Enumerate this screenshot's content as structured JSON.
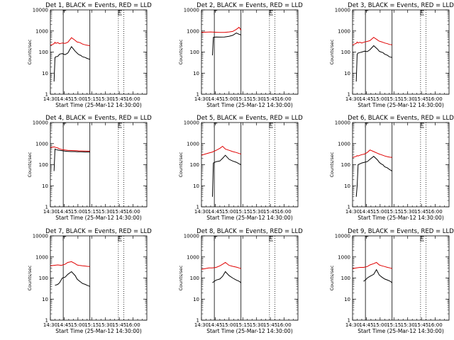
{
  "chart_data": [
    {
      "type": "line",
      "title": "Det 1, BLACK = Events, RED = LLD",
      "xlabel": "Start Time (25-Mar-12 14:30:00)",
      "ylabel": "Counts/sec",
      "ylog": true,
      "ylim": [
        1,
        10000
      ],
      "xlim": [
        "14:30",
        "16:15"
      ],
      "x_ticks": [
        "14:30",
        "14:45",
        "15:00",
        "15:15",
        "15:30",
        "15:45",
        "16:00"
      ],
      "y_ticks": [
        "1",
        "10",
        "100",
        "1000",
        "10000"
      ],
      "solid_markers": [
        "14:44",
        "15:13"
      ],
      "dotted_markers": [
        "15:44",
        "15:50"
      ],
      "series": [
        {
          "name": "Events",
          "color": "#000000",
          "x_minutes": [
            4,
            5,
            6,
            8,
            10,
            13,
            16,
            19,
            23,
            27,
            29,
            31,
            33,
            35,
            38,
            40,
            43
          ],
          "values": [
            4,
            55,
            60,
            62,
            80,
            85,
            75,
            90,
            180,
            110,
            90,
            75,
            70,
            60,
            55,
            50,
            45
          ]
        },
        {
          "name": "LLD",
          "color": "#e00000",
          "x_minutes": [
            0,
            4,
            5,
            6,
            8,
            10,
            13,
            16,
            19,
            23,
            27,
            29,
            31,
            33,
            35,
            38,
            40,
            43
          ],
          "values": [
            210,
            250,
            290,
            260,
            280,
            250,
            270,
            260,
            290,
            480,
            360,
            300,
            290,
            270,
            240,
            220,
            210,
            200
          ]
        }
      ]
    },
    {
      "type": "line",
      "title": "Det 2, BLACK = Events, RED = LLD",
      "xlabel": "Start Time (25-Mar-12 14:30:00)",
      "ylabel": "Counts/sec",
      "ylog": true,
      "ylim": [
        1,
        10000
      ],
      "xlim": [
        "14:30",
        "16:15"
      ],
      "x_ticks": [
        "14:30",
        "14:45",
        "15:00",
        "15:15",
        "15:30",
        "15:45",
        "16:00"
      ],
      "y_ticks": [
        "1",
        "10",
        "100",
        "1000",
        "10000"
      ],
      "solid_markers": [
        "14:44",
        "15:13"
      ],
      "dotted_markers": [
        "15:44",
        "15:50"
      ],
      "series": [
        {
          "name": "Events",
          "color": "#000000",
          "x_minutes": [
            12,
            13,
            16,
            20,
            25,
            30,
            34,
            38,
            41,
            43
          ],
          "values": [
            70,
            500,
            520,
            510,
            520,
            560,
            620,
            800,
            700,
            650
          ]
        },
        {
          "name": "LLD",
          "color": "#e00000",
          "x_minutes": [
            0,
            5,
            10,
            15,
            20,
            25,
            30,
            34,
            38,
            41,
            43
          ],
          "values": [
            850,
            880,
            900,
            870,
            850,
            860,
            900,
            950,
            1200,
            1500,
            1100
          ]
        }
      ]
    },
    {
      "type": "line",
      "title": "Det 3, BLACK = Events, RED = LLD",
      "xlabel": "Start Time (25-Mar-12 14:30:00)",
      "ylabel": "Counts/sec",
      "ylog": true,
      "ylim": [
        1,
        10000
      ],
      "xlim": [
        "14:30",
        "16:15"
      ],
      "x_ticks": [
        "14:30",
        "14:45",
        "15:00",
        "15:15",
        "15:30",
        "15:45",
        "16:00"
      ],
      "y_ticks": [
        "1",
        "10",
        "100",
        "1000",
        "10000"
      ],
      "solid_markers": [
        "14:44",
        "15:13"
      ],
      "dotted_markers": [
        "15:44",
        "15:50"
      ],
      "series": [
        {
          "name": "Events",
          "color": "#000000",
          "x_minutes": [
            4,
            5,
            6,
            8,
            10,
            13,
            16,
            19,
            23,
            27,
            29,
            31,
            33,
            35,
            38,
            40,
            43
          ],
          "values": [
            4,
            80,
            90,
            95,
            100,
            110,
            105,
            130,
            200,
            140,
            110,
            100,
            95,
            80,
            70,
            60,
            55
          ]
        },
        {
          "name": "LLD",
          "color": "#e00000",
          "x_minutes": [
            0,
            4,
            5,
            6,
            8,
            10,
            13,
            16,
            19,
            23,
            27,
            29,
            31,
            33,
            35,
            38,
            40,
            43
          ],
          "values": [
            220,
            260,
            300,
            270,
            290,
            270,
            300,
            320,
            350,
            500,
            380,
            330,
            310,
            290,
            270,
            250,
            230,
            220
          ]
        }
      ]
    },
    {
      "type": "line",
      "title": "Det 4, BLACK = Events, RED = LLD",
      "xlabel": "Start Time (25-Mar-12 14:30:00)",
      "ylabel": "Counts/sec",
      "ylog": true,
      "ylim": [
        1,
        10000
      ],
      "xlim": [
        "14:30",
        "16:15"
      ],
      "x_ticks": [
        "14:30",
        "14:45",
        "15:00",
        "15:15",
        "15:30",
        "15:45",
        "16:00"
      ],
      "y_ticks": [
        "1",
        "10",
        "100",
        "1000",
        "10000"
      ],
      "solid_markers": [
        "14:44",
        "15:13"
      ],
      "dotted_markers": [
        "15:44",
        "15:50"
      ],
      "series": [
        {
          "name": "Events",
          "color": "#000000",
          "x_minutes": [
            4,
            5,
            6,
            8,
            10,
            13,
            16,
            19,
            23,
            27,
            29,
            31,
            33,
            35,
            38,
            40,
            43
          ],
          "values": [
            50,
            550,
            520,
            500,
            480,
            460,
            440,
            430,
            420,
            420,
            410,
            410,
            410,
            405,
            400,
            400,
            400
          ]
        },
        {
          "name": "LLD",
          "color": "#e00000",
          "x_minutes": [
            0,
            4,
            5,
            6,
            8,
            10,
            13,
            16,
            19,
            23,
            27,
            29,
            31,
            33,
            35,
            38,
            40,
            43
          ],
          "values": [
            650,
            700,
            680,
            650,
            620,
            560,
            520,
            500,
            480,
            470,
            460,
            460,
            450,
            450,
            450,
            445,
            440,
            440
          ]
        }
      ]
    },
    {
      "type": "line",
      "title": "Det 5, BLACK = Events, RED = LLD",
      "xlabel": "Start Time (25-Mar-12 14:30:00)",
      "ylabel": "Counts/sec",
      "ylog": true,
      "ylim": [
        1,
        10000
      ],
      "xlim": [
        "14:30",
        "16:15"
      ],
      "x_ticks": [
        "14:30",
        "14:45",
        "15:00",
        "15:15",
        "15:30",
        "15:45",
        "16:00"
      ],
      "y_ticks": [
        "1",
        "10",
        "100",
        "1000",
        "10000"
      ],
      "solid_markers": [
        "14:44",
        "15:13"
      ],
      "dotted_markers": [
        "15:44",
        "15:50"
      ],
      "series": [
        {
          "name": "Events",
          "color": "#000000",
          "x_minutes": [
            12,
            13,
            16,
            20,
            23,
            26,
            30,
            34,
            38,
            41,
            43
          ],
          "values": [
            3,
            120,
            140,
            150,
            200,
            280,
            180,
            150,
            130,
            110,
            100
          ]
        },
        {
          "name": "LLD",
          "color": "#e00000",
          "x_minutes": [
            0,
            4,
            8,
            12,
            16,
            20,
            23,
            26,
            30,
            34,
            38,
            41,
            43
          ],
          "values": [
            280,
            320,
            360,
            400,
            480,
            600,
            750,
            550,
            480,
            420,
            380,
            340,
            320
          ]
        }
      ]
    },
    {
      "type": "line",
      "title": "Det 6, BLACK = Events, RED = LLD",
      "xlabel": "Start Time (25-Mar-12 14:30:00)",
      "ylabel": "Counts/sec",
      "ylog": true,
      "ylim": [
        1,
        10000
      ],
      "xlim": [
        "14:30",
        "16:15"
      ],
      "x_ticks": [
        "14:30",
        "14:45",
        "15:00",
        "15:15",
        "15:30",
        "15:45",
        "16:00"
      ],
      "y_ticks": [
        "1",
        "10",
        "100",
        "1000",
        "10000"
      ],
      "solid_markers": [
        "14:44",
        "15:13"
      ],
      "dotted_markers": [
        "15:44",
        "15:50"
      ],
      "series": [
        {
          "name": "Events",
          "color": "#000000",
          "x_minutes": [
            4,
            5,
            6,
            8,
            10,
            13,
            16,
            19,
            23,
            27,
            29,
            31,
            33,
            35,
            38,
            40,
            43
          ],
          "values": [
            3,
            10,
            100,
            110,
            120,
            130,
            140,
            180,
            250,
            170,
            130,
            110,
            100,
            80,
            70,
            60,
            50
          ]
        },
        {
          "name": "LLD",
          "color": "#e00000",
          "x_minutes": [
            0,
            4,
            5,
            6,
            8,
            10,
            13,
            16,
            19,
            23,
            27,
            29,
            31,
            33,
            35,
            38,
            40,
            43
          ],
          "values": [
            220,
            250,
            270,
            260,
            280,
            300,
            320,
            380,
            500,
            420,
            350,
            320,
            300,
            280,
            260,
            240,
            230,
            220
          ]
        }
      ]
    },
    {
      "type": "line",
      "title": "Det 7, BLACK = Events, RED = LLD",
      "xlabel": "Start Time (25-Mar-12 14:30:00)",
      "ylabel": "Counts/sec",
      "ylog": true,
      "ylim": [
        1,
        10000
      ],
      "xlim": [
        "14:30",
        "16:15"
      ],
      "x_ticks": [
        "14:30",
        "14:45",
        "15:00",
        "15:15",
        "15:30",
        "15:45",
        "16:00"
      ],
      "y_ticks": [
        "1",
        "10",
        "100",
        "1000",
        "10000"
      ],
      "solid_markers": [
        "14:44",
        "15:13"
      ],
      "dotted_markers": [
        "15:44",
        "15:50"
      ],
      "series": [
        {
          "name": "Events",
          "color": "#000000",
          "x_minutes": [
            5,
            8,
            10,
            13,
            16,
            19,
            23,
            27,
            29,
            31,
            33,
            35,
            38,
            40,
            43
          ],
          "values": [
            45,
            50,
            60,
            100,
            110,
            150,
            200,
            130,
            90,
            75,
            65,
            55,
            50,
            45,
            40
          ]
        },
        {
          "name": "LLD",
          "color": "#e00000",
          "x_minutes": [
            0,
            4,
            8,
            12,
            16,
            19,
            23,
            27,
            29,
            31,
            33,
            35,
            38,
            40,
            43
          ],
          "values": [
            380,
            400,
            420,
            400,
            450,
            550,
            600,
            480,
            420,
            400,
            390,
            380,
            370,
            360,
            350
          ]
        }
      ]
    },
    {
      "type": "line",
      "title": "Det 8, BLACK = Events, RED = LLD",
      "xlabel": "Start Time (25-Mar-12 14:30:00)",
      "ylabel": "Counts/sec",
      "ylog": true,
      "ylim": [
        1,
        10000
      ],
      "xlim": [
        "14:30",
        "16:15"
      ],
      "x_ticks": [
        "14:30",
        "14:45",
        "15:00",
        "15:15",
        "15:30",
        "15:45",
        "16:00"
      ],
      "y_ticks": [
        "1",
        "10",
        "100",
        "1000",
        "10000"
      ],
      "solid_markers": [
        "14:44",
        "15:13"
      ],
      "dotted_markers": [
        "15:44",
        "15:50"
      ],
      "series": [
        {
          "name": "Events",
          "color": "#000000",
          "x_minutes": [
            12,
            14,
            16,
            20,
            23,
            26,
            30,
            34,
            38,
            41,
            43
          ],
          "values": [
            60,
            70,
            80,
            90,
            120,
            200,
            130,
            100,
            80,
            70,
            60
          ]
        },
        {
          "name": "LLD",
          "color": "#e00000",
          "x_minutes": [
            0,
            4,
            8,
            12,
            16,
            20,
            23,
            26,
            30,
            34,
            38,
            41,
            43
          ],
          "values": [
            260,
            280,
            300,
            300,
            320,
            380,
            450,
            550,
            400,
            360,
            330,
            300,
            280
          ]
        }
      ]
    },
    {
      "type": "line",
      "title": "Det 9, BLACK = Events, RED = LLD",
      "xlabel": "Start Time (25-Mar-12 14:30:00)",
      "ylabel": "Counts/sec",
      "ylog": true,
      "ylim": [
        1,
        10000
      ],
      "xlim": [
        "14:30",
        "16:15"
      ],
      "x_ticks": [
        "14:30",
        "14:45",
        "15:00",
        "15:15",
        "15:30",
        "15:45",
        "16:00"
      ],
      "y_ticks": [
        "1",
        "10",
        "100",
        "1000",
        "10000"
      ],
      "solid_markers": [
        "14:44",
        "15:13"
      ],
      "dotted_markers": [
        "15:44",
        "15:50"
      ],
      "series": [
        {
          "name": "Events",
          "color": "#000000",
          "x_minutes": [
            12,
            14,
            16,
            19,
            23,
            26,
            29,
            32,
            35,
            38,
            41,
            43
          ],
          "values": [
            70,
            80,
            100,
            120,
            150,
            250,
            140,
            110,
            90,
            80,
            70,
            60
          ]
        },
        {
          "name": "LLD",
          "color": "#e00000",
          "x_minutes": [
            0,
            4,
            8,
            12,
            16,
            19,
            23,
            26,
            29,
            32,
            35,
            38,
            41,
            43
          ],
          "values": [
            280,
            300,
            320,
            320,
            350,
            420,
            480,
            550,
            420,
            380,
            350,
            320,
            300,
            280
          ]
        }
      ]
    }
  ]
}
